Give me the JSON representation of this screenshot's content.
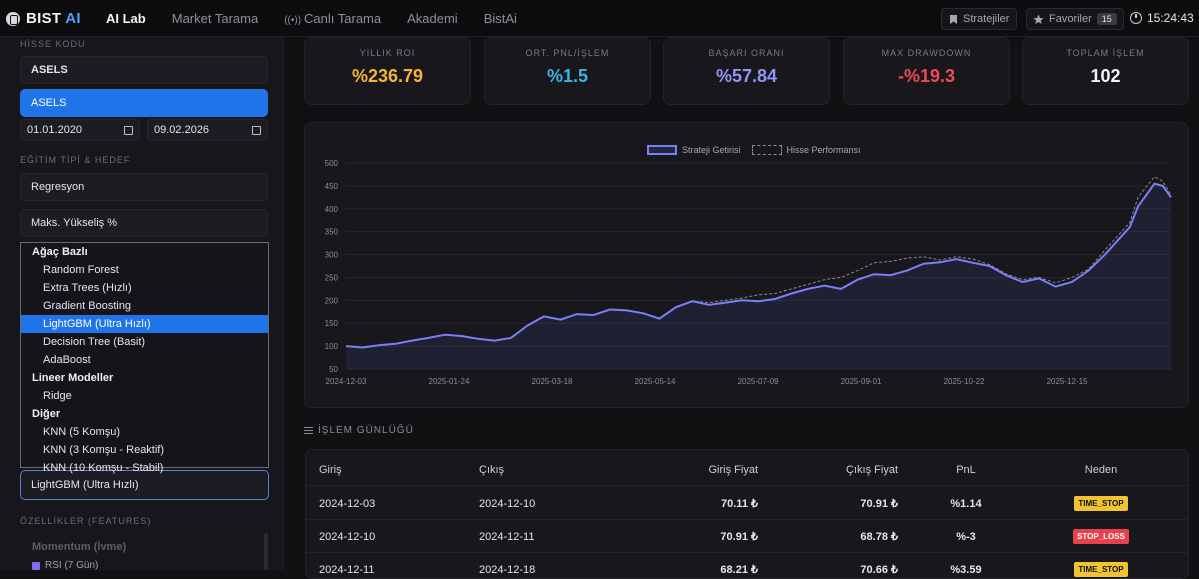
{
  "app": {
    "logo_main": "BIST",
    "logo_accent": "AI"
  },
  "nav": {
    "items": [
      "AI Lab",
      "Market Tarama",
      "Canlı Tarama",
      "Akademi",
      "BistAi"
    ],
    "strategies_label": "Stratejiler",
    "favorites_label": "Favoriler",
    "favorites_count": "15",
    "time": "15:24:43"
  },
  "sidebar": {
    "stock_label": "HİSSE KODU",
    "stock_value": "ASELS",
    "stock_suggestion": "ASELS",
    "date_start": "01.01.2020",
    "date_end": "09.02.2026",
    "training_label": "EĞİTİM TİPİ & HEDEF",
    "training_type": "Regresyon",
    "target": "Maks. Yükseliş %",
    "model_selected": "LightGBM (Ultra Hızlı)",
    "features_label": "ÖZELLİKLER (FEATURES)",
    "features_group": "Momentum (İvme)",
    "features_first": "RSI (7 Gün)"
  },
  "dropdown": [
    {
      "group": "Ağaç Bazlı",
      "items": [
        "Random Forest",
        "Extra Trees (Hızlı)",
        "Gradient Boosting",
        "LightGBM (Ultra Hızlı)",
        "Decision Tree (Basit)",
        "AdaBoost"
      ]
    },
    {
      "group": "Lineer Modeller",
      "items": [
        "Ridge"
      ]
    },
    {
      "group": "Diğer",
      "items": [
        "KNN (5 Komşu)",
        "KNN (3 Komşu - Reaktif)",
        "KNN (10 Komşu - Stabil)"
      ]
    }
  ],
  "stats": [
    {
      "label": "YILLIK ROI",
      "value": "%236.79",
      "color": "#f4b43a"
    },
    {
      "label": "ORT. PNL/İŞLEM",
      "value": "%1.5",
      "color": "#3bb4e6"
    },
    {
      "label": "BAŞARI ORANI",
      "value": "%57.84",
      "color": "#8f96f5"
    },
    {
      "label": "MAX DRAWDOWN",
      "value": "-%19.3",
      "color": "#ee4a55"
    },
    {
      "label": "TOPLAM İŞLEM",
      "value": "102",
      "color": "#f2f2f5"
    }
  ],
  "chart_data": {
    "type": "line",
    "legend": [
      "Strateji Getirisi",
      "Hisse Performansı"
    ],
    "x_ticks": [
      "2024-12-03",
      "2025-01-24",
      "2025-03-18",
      "2025-05-14",
      "2025-07-09",
      "2025-09-01",
      "2025-10-22",
      "2025-12-15"
    ],
    "y_ticks": [
      50,
      100,
      150,
      200,
      250,
      300,
      350,
      400,
      450,
      500
    ],
    "ylim": [
      50,
      500
    ],
    "x_range": [
      0,
      100
    ],
    "series": [
      {
        "name": "Strateji Getirisi",
        "points": [
          [
            0,
            100
          ],
          [
            2,
            97
          ],
          [
            4,
            102
          ],
          [
            6,
            105
          ],
          [
            8,
            112
          ],
          [
            10,
            118
          ],
          [
            12,
            125
          ],
          [
            14,
            122
          ],
          [
            16,
            116
          ],
          [
            18,
            112
          ],
          [
            20,
            118
          ],
          [
            22,
            145
          ],
          [
            24,
            165
          ],
          [
            26,
            158
          ],
          [
            28,
            170
          ],
          [
            30,
            168
          ],
          [
            32,
            180
          ],
          [
            34,
            178
          ],
          [
            36,
            172
          ],
          [
            38,
            160
          ],
          [
            40,
            185
          ],
          [
            42,
            198
          ],
          [
            44,
            190
          ],
          [
            46,
            195
          ],
          [
            48,
            200
          ],
          [
            50,
            198
          ],
          [
            52,
            203
          ],
          [
            54,
            215
          ],
          [
            56,
            225
          ],
          [
            58,
            232
          ],
          [
            60,
            225
          ],
          [
            62,
            245
          ],
          [
            64,
            257
          ],
          [
            66,
            255
          ],
          [
            68,
            265
          ],
          [
            70,
            280
          ],
          [
            72,
            283
          ],
          [
            74,
            290
          ],
          [
            76,
            282
          ],
          [
            78,
            275
          ],
          [
            80,
            255
          ],
          [
            82,
            240
          ],
          [
            84,
            248
          ],
          [
            86,
            230
          ],
          [
            88,
            240
          ],
          [
            90,
            265
          ],
          [
            92,
            300
          ],
          [
            94,
            340
          ],
          [
            95,
            360
          ],
          [
            96,
            405
          ],
          [
            97,
            430
          ],
          [
            98,
            455
          ],
          [
            99,
            450
          ],
          [
            100,
            425
          ]
        ]
      },
      {
        "name": "Hisse Performansı",
        "points": [
          [
            0,
            100
          ],
          [
            2,
            97
          ],
          [
            4,
            102
          ],
          [
            6,
            105
          ],
          [
            8,
            112
          ],
          [
            10,
            118
          ],
          [
            12,
            125
          ],
          [
            14,
            122
          ],
          [
            16,
            116
          ],
          [
            18,
            112
          ],
          [
            20,
            118
          ],
          [
            22,
            145
          ],
          [
            24,
            165
          ],
          [
            26,
            158
          ],
          [
            28,
            170
          ],
          [
            30,
            168
          ],
          [
            32,
            180
          ],
          [
            34,
            178
          ],
          [
            36,
            172
          ],
          [
            38,
            160
          ],
          [
            40,
            185
          ],
          [
            42,
            198
          ],
          [
            44,
            195
          ],
          [
            46,
            200
          ],
          [
            48,
            205
          ],
          [
            50,
            212
          ],
          [
            52,
            215
          ],
          [
            54,
            225
          ],
          [
            56,
            235
          ],
          [
            58,
            245
          ],
          [
            60,
            250
          ],
          [
            62,
            265
          ],
          [
            64,
            282
          ],
          [
            66,
            285
          ],
          [
            68,
            292
          ],
          [
            70,
            295
          ],
          [
            72,
            288
          ],
          [
            74,
            295
          ],
          [
            76,
            290
          ],
          [
            78,
            278
          ],
          [
            80,
            258
          ],
          [
            82,
            245
          ],
          [
            84,
            250
          ],
          [
            86,
            238
          ],
          [
            88,
            250
          ],
          [
            90,
            268
          ],
          [
            92,
            310
          ],
          [
            94,
            350
          ],
          [
            95,
            370
          ],
          [
            96,
            425
          ],
          [
            97,
            448
          ],
          [
            98,
            470
          ],
          [
            99,
            460
          ],
          [
            100,
            430
          ]
        ]
      }
    ]
  },
  "log": {
    "title": "İŞLEM GÜNLÜĞÜ",
    "columns": [
      "Giriş",
      "Çıkış",
      "Giriş Fiyat",
      "Çıkış Fiyat",
      "PnL",
      "Neden"
    ],
    "rows": [
      {
        "entry": "2024-12-03",
        "exit": "2024-12-10",
        "entry_price": "70.11 ₺",
        "exit_price": "70.91 ₺",
        "pnl": "%1.14",
        "reason": "TIME_STOP"
      },
      {
        "entry": "2024-12-10",
        "exit": "2024-12-11",
        "entry_price": "70.91 ₺",
        "exit_price": "68.78 ₺",
        "pnl": "%-3",
        "reason": "STOP_LOSS"
      },
      {
        "entry": "2024-12-11",
        "exit": "2024-12-18",
        "entry_price": "68.21 ₺",
        "exit_price": "70.66 ₺",
        "pnl": "%3.59",
        "reason": "TIME_STOP"
      }
    ]
  }
}
